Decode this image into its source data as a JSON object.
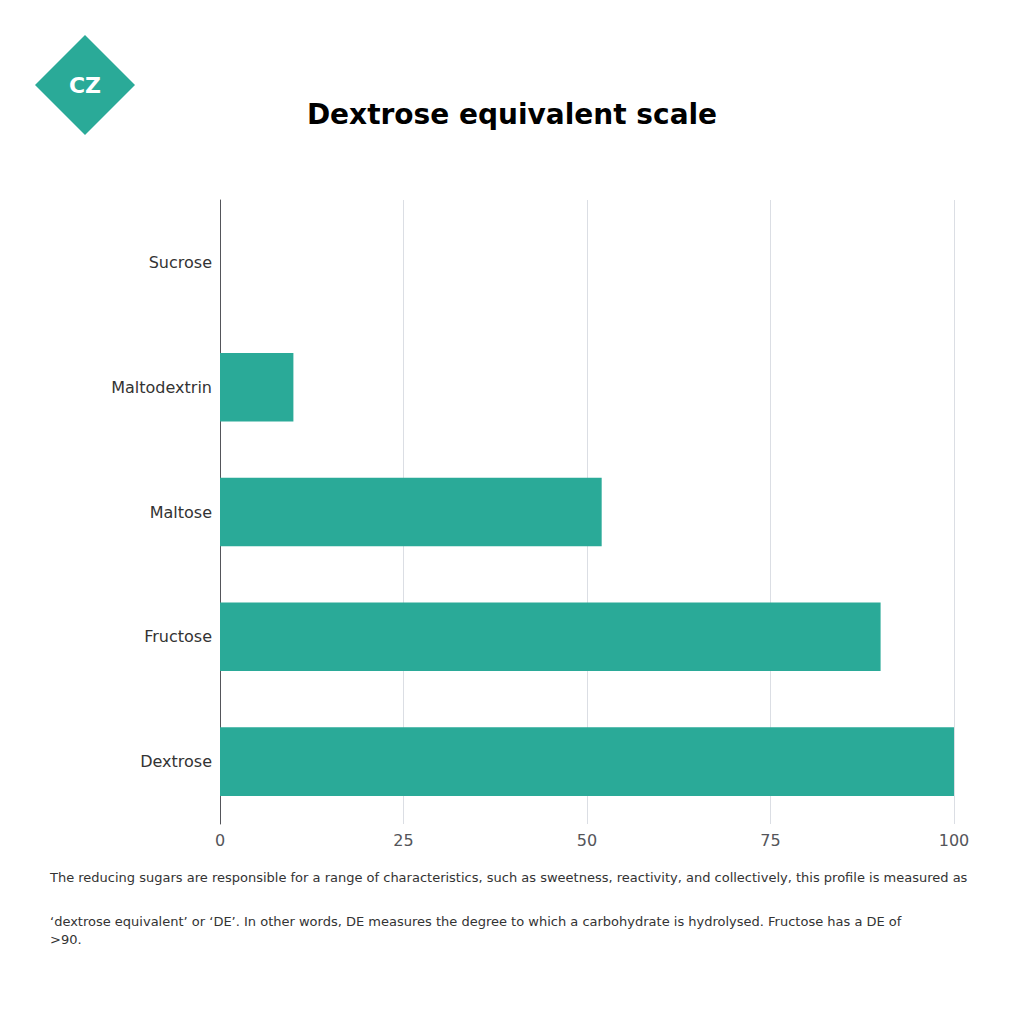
{
  "chart_data": {
    "type": "bar",
    "orientation": "horizontal",
    "title": "Dextrose equivalent scale",
    "categories": [
      "Sucrose",
      "Maltodextrin",
      "Maltose",
      "Fructose",
      "Dextrose"
    ],
    "values": [
      0,
      10,
      52,
      90,
      100
    ],
    "color": "#2aaa98",
    "xlim": [
      0,
      100
    ],
    "xticks": [
      0,
      25,
      50,
      75,
      100
    ],
    "grid": true,
    "annotations": [
      "CZ",
      "The reducing sugars are responsible for a range of characteristics, such as sweetness, reactivity, and collectively, this profile is measured as",
      "‘dextrose equivalent’ or ‘DE’. In other words, DE measures the degree to which a carbohydrate is hydrolysed. Fructose has a DE of >90."
    ]
  }
}
